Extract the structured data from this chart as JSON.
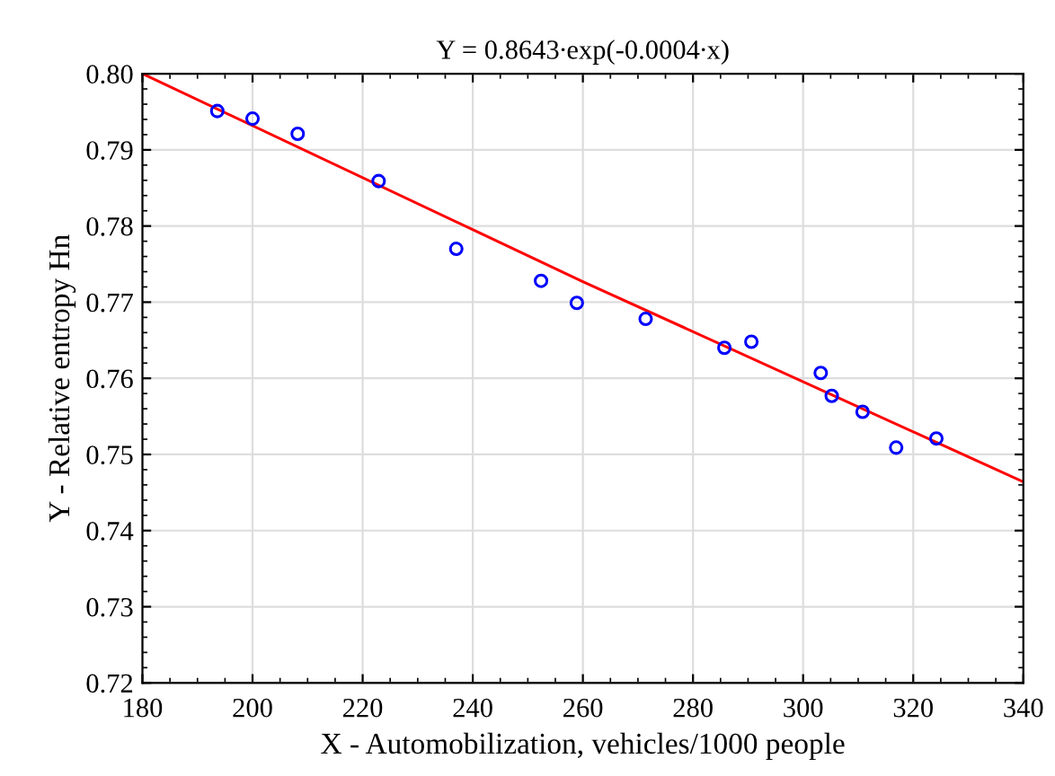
{
  "chart_data": {
    "type": "scatter",
    "title": "Y = 0.8643∙exp(-0.0004∙x)",
    "xlabel": "X - Automobilization, vehicles/1000 people",
    "ylabel": "Y - Relative entropy Hn",
    "series": [
      {
        "color": "#0000ff",
        "marker": "circle",
        "x": [
          193.6,
          200.0,
          208.2,
          222.9,
          237.0,
          252.4,
          258.9,
          271.4,
          285.7,
          290.6,
          303.2,
          305.2,
          310.8,
          316.9,
          324.2
        ],
        "values": [
          0.7951,
          0.7941,
          0.7921,
          0.7859,
          0.777,
          0.7728,
          0.7699,
          0.7678,
          0.764,
          0.7648,
          0.7607,
          0.7577,
          0.7556,
          0.7509,
          0.7521
        ]
      },
      {
        "type": "line",
        "color": "#ff0000",
        "marker": "none",
        "x": [
          180,
          260,
          340
        ],
        "values": [
          0.8,
          0.7727,
          0.7464
        ]
      }
    ],
    "xlim": [
      180,
      340
    ],
    "xticks": [
      180,
      200,
      220,
      240,
      260,
      280,
      300,
      320,
      340
    ],
    "ylim": [
      0.72,
      0.8
    ],
    "yticks": [
      {
        "value": 0.72,
        "label": "0.72"
      },
      {
        "value": 0.73,
        "label": "0.73"
      },
      {
        "value": 0.74,
        "label": "0.74"
      },
      {
        "value": 0.75,
        "label": "0.75"
      },
      {
        "value": 0.76,
        "label": "0.76"
      },
      {
        "value": 0.77,
        "label": "0.77"
      },
      {
        "value": 0.78,
        "label": "0.78"
      },
      {
        "value": 0.79,
        "label": "0.79"
      },
      {
        "value": 0.8,
        "label": "0.80"
      }
    ],
    "grid": true
  }
}
